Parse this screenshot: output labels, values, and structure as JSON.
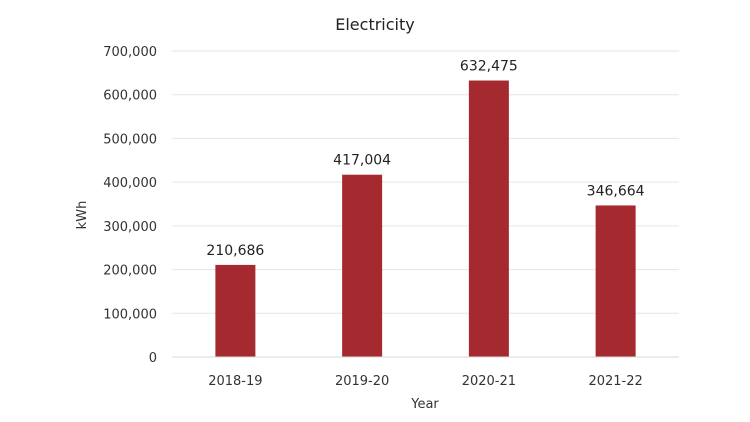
{
  "chart_data": {
    "type": "bar",
    "title": "Electricity",
    "xlabel": "Year",
    "ylabel": "kWh",
    "categories": [
      "2018-19",
      "2019-20",
      "2020-21",
      "2021-22"
    ],
    "values": [
      210686,
      417004,
      632475,
      346664
    ],
    "value_labels": [
      "210,686",
      "417,004",
      "632,475",
      "346,664"
    ],
    "ylim": [
      0,
      700000
    ],
    "yticks": [
      0,
      100000,
      200000,
      300000,
      400000,
      500000,
      600000,
      700000
    ],
    "ytick_labels": [
      "0",
      "100,000",
      "200,000",
      "300,000",
      "400,000",
      "500,000",
      "600,000",
      "700,000"
    ],
    "grid": true,
    "legend": "none",
    "bar_color": "#A52A2F",
    "grid_color": "#E6E6E6",
    "axis_color": "#D9D9D9"
  }
}
